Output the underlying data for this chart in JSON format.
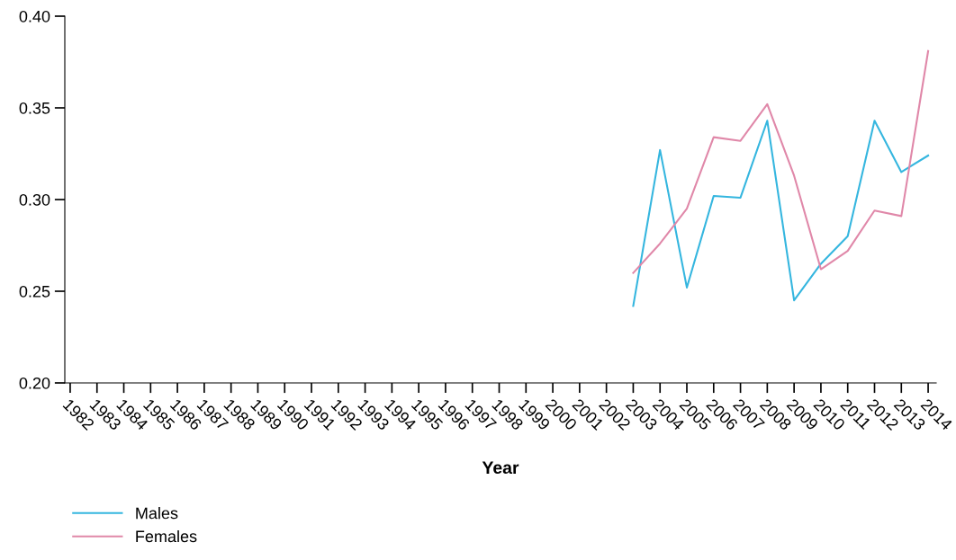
{
  "chart_data": {
    "type": "line",
    "xlabel": "Year",
    "categories": [
      "1982",
      "1983",
      "1984",
      "1985",
      "1986",
      "1987",
      "1988",
      "1989",
      "1990",
      "1991",
      "1992",
      "1993",
      "1994",
      "1995",
      "1996",
      "1997",
      "1998",
      "1999",
      "2000",
      "2001",
      "2002",
      "2003",
      "2004",
      "2005",
      "2006",
      "2007",
      "2008",
      "2009",
      "2010",
      "2011",
      "2012",
      "2013",
      "2014"
    ],
    "series": [
      {
        "name": "Males",
        "color": "#35b6df",
        "values": [
          null,
          null,
          null,
          null,
          null,
          null,
          null,
          null,
          null,
          null,
          null,
          null,
          null,
          null,
          null,
          null,
          null,
          null,
          null,
          null,
          null,
          0.242,
          0.327,
          0.252,
          0.302,
          0.301,
          0.343,
          0.245,
          0.265,
          0.28,
          0.343,
          0.315,
          0.324
        ]
      },
      {
        "name": "Females",
        "color": "#e088a9",
        "values": [
          null,
          null,
          null,
          null,
          null,
          null,
          null,
          null,
          null,
          null,
          null,
          null,
          null,
          null,
          null,
          null,
          null,
          null,
          null,
          null,
          null,
          0.26,
          0.276,
          0.295,
          0.334,
          0.332,
          0.352,
          0.313,
          0.262,
          0.272,
          0.294,
          0.291,
          0.381
        ]
      }
    ],
    "ylim": [
      0.2,
      0.4
    ],
    "yticks": [
      {
        "value": 0.2,
        "label": "0.20"
      },
      {
        "value": 0.25,
        "label": "0.25"
      },
      {
        "value": 0.3,
        "label": "0.30"
      },
      {
        "value": 0.35,
        "label": "0.35"
      },
      {
        "value": 0.4,
        "label": "0.40"
      }
    ],
    "grid": false,
    "legend": "bottom left",
    "marker": "none",
    "line_style": "solid"
  }
}
